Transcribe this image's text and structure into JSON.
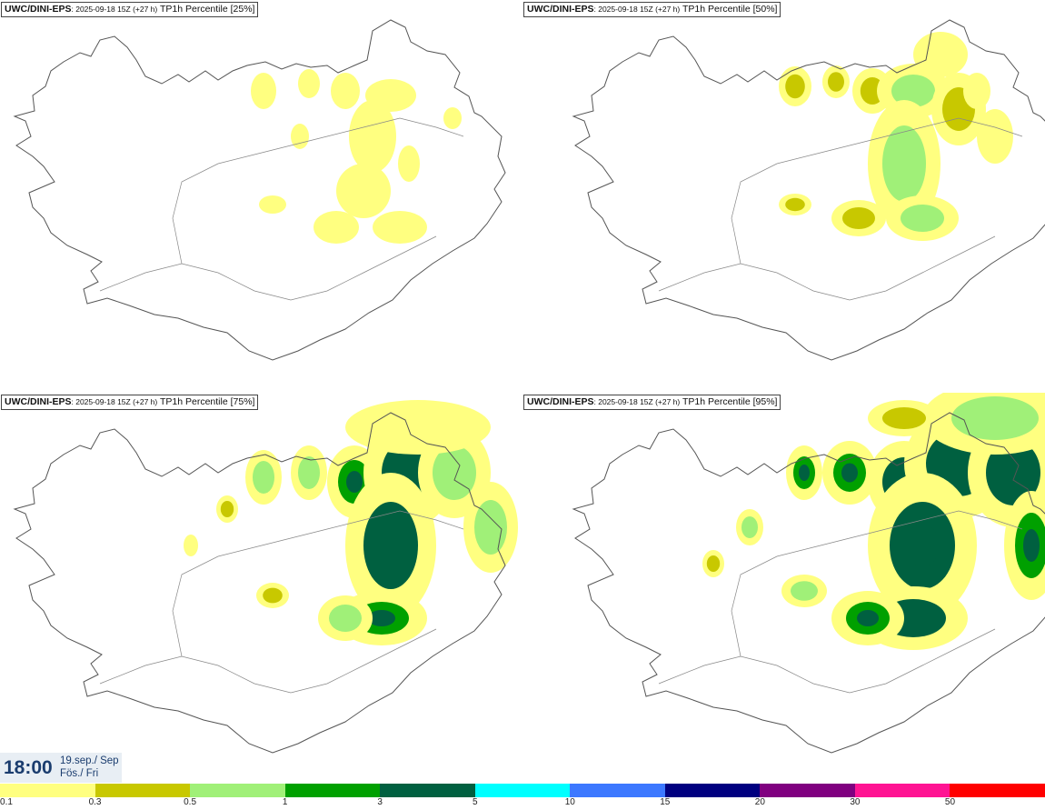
{
  "panels": [
    {
      "model": "UWC/DINI-EPS",
      "run": ": 2025-09-18 15Z (+27 h)",
      "field": " TP1h Percentile [25%]"
    },
    {
      "model": "UWC/DINI-EPS",
      "run": ": 2025-09-18 15Z (+27 h)",
      "field": " TP1h Percentile [50%]"
    },
    {
      "model": "UWC/DINI-EPS",
      "run": ": 2025-09-18 15Z (+27 h)",
      "field": " TP1h Percentile [75%]"
    },
    {
      "model": "UWC/DINI-EPS",
      "run": ": 2025-09-18 15Z (+27 h)",
      "field": " TP1h Percentile [95%]"
    }
  ],
  "valid_time": {
    "time": "18:00",
    "date_line1": "19.sep./ Sep",
    "date_line2": "Fös./ Fri"
  },
  "legend": {
    "colors": [
      "#ffff80",
      "#c8c800",
      "#a0f078",
      "#00a000",
      "#006040",
      "#00ffff",
      "#3c78ff",
      "#000080",
      "#800080",
      "#ff1493",
      "#ff0000"
    ],
    "labels": [
      "0.1",
      "0.3",
      "0.5",
      "1",
      "3",
      "5",
      "10",
      "15",
      "20",
      "30",
      "50"
    ]
  }
}
